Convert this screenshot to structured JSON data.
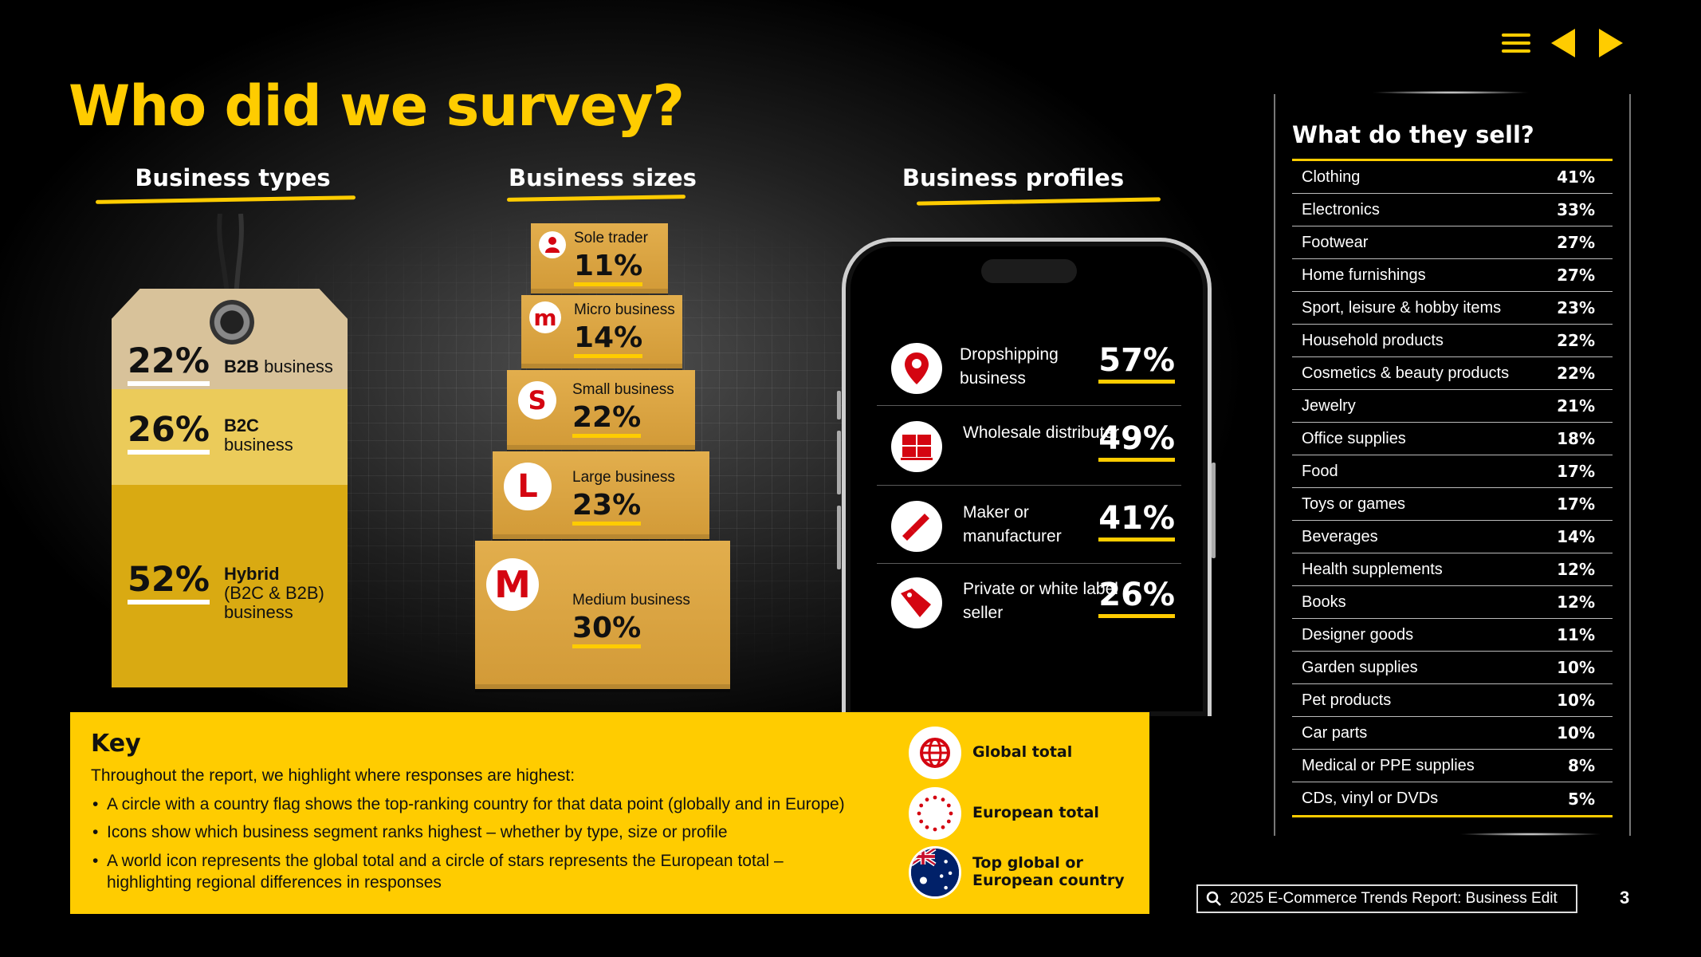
{
  "title": "Who did we survey?",
  "nav": {
    "menu": "menu-icon",
    "prev": "previous-arrow-icon",
    "next": "next-arrow-icon"
  },
  "business_types": {
    "heading": "Business types",
    "items": [
      {
        "pct": "22%",
        "bold": "B2B",
        "text": " business"
      },
      {
        "pct": "26%",
        "bold": "B2C",
        "text": "business"
      },
      {
        "pct": "52%",
        "bold": "Hybrid",
        "text": "(B2C & B2B)",
        "text2": "business"
      }
    ]
  },
  "business_sizes": {
    "heading": "Business sizes",
    "items": [
      {
        "badge": "person",
        "label": "Sole trader",
        "pct": "11%"
      },
      {
        "badge": "m",
        "label": "Micro business",
        "pct": "14%"
      },
      {
        "badge": "S",
        "label": "Small business",
        "pct": "22%"
      },
      {
        "badge": "L",
        "label": "Large business",
        "pct": "23%"
      },
      {
        "badge": "M",
        "label": "Medium business",
        "pct": "30%"
      }
    ]
  },
  "business_profiles": {
    "heading": "Business profiles",
    "items": [
      {
        "icon": "location-pin-icon",
        "label": "Dropshipping business",
        "pct": "57%"
      },
      {
        "icon": "boxes-icon",
        "label": "Wholesale distributer",
        "pct": "49%"
      },
      {
        "icon": "tool-icon",
        "label": "Maker or manufacturer",
        "pct": "41%"
      },
      {
        "icon": "price-tag-icon",
        "label": "Private or white label seller",
        "pct": "26%"
      }
    ]
  },
  "key": {
    "title": "Key",
    "intro": "Throughout the report, we highlight where responses are highest:",
    "bullets": [
      "A circle with a country flag shows the top-ranking country for that data point (globally and in Europe)",
      "Icons show which business segment ranks highest – whether by type, size or profile",
      "A world icon represents the global total and a circle of stars represents the European total – highlighting regional differences in responses"
    ],
    "legend": [
      {
        "icon": "globe-icon",
        "label": "Global total"
      },
      {
        "icon": "eu-stars-icon",
        "label": "European total"
      },
      {
        "icon": "australia-flag-icon",
        "label": "Top global or",
        "label2": "European country"
      }
    ]
  },
  "sell": {
    "title": "What do they sell?",
    "rows": [
      {
        "name": "Clothing",
        "value": "41%"
      },
      {
        "name": "Electronics",
        "value": "33%"
      },
      {
        "name": "Footwear",
        "value": "27%"
      },
      {
        "name": "Home furnishings",
        "value": "27%"
      },
      {
        "name": "Sport, leisure & hobby items",
        "value": "23%"
      },
      {
        "name": "Household products",
        "value": "22%"
      },
      {
        "name": "Cosmetics & beauty products",
        "value": "22%"
      },
      {
        "name": "Jewelry",
        "value": "21%"
      },
      {
        "name": "Office supplies",
        "value": "18%"
      },
      {
        "name": "Food",
        "value": "17%"
      },
      {
        "name": "Toys or games",
        "value": "17%"
      },
      {
        "name": "Beverages",
        "value": "14%"
      },
      {
        "name": "Health supplements",
        "value": "12%"
      },
      {
        "name": "Books",
        "value": "12%"
      },
      {
        "name": "Designer goods",
        "value": "11%"
      },
      {
        "name": "Garden supplies",
        "value": "10%"
      },
      {
        "name": "Pet products",
        "value": "10%"
      },
      {
        "name": "Car parts",
        "value": "10%"
      },
      {
        "name": "Medical or PPE supplies",
        "value": "8%"
      },
      {
        "name": "CDs, vinyl or DVDs",
        "value": "5%"
      }
    ]
  },
  "footer": {
    "search_text": "2025 E-Commerce Trends Report: Business Edit",
    "page": "3"
  },
  "colors": {
    "accent": "#FFCC00",
    "red": "#D40511",
    "box": "#D9A241"
  }
}
